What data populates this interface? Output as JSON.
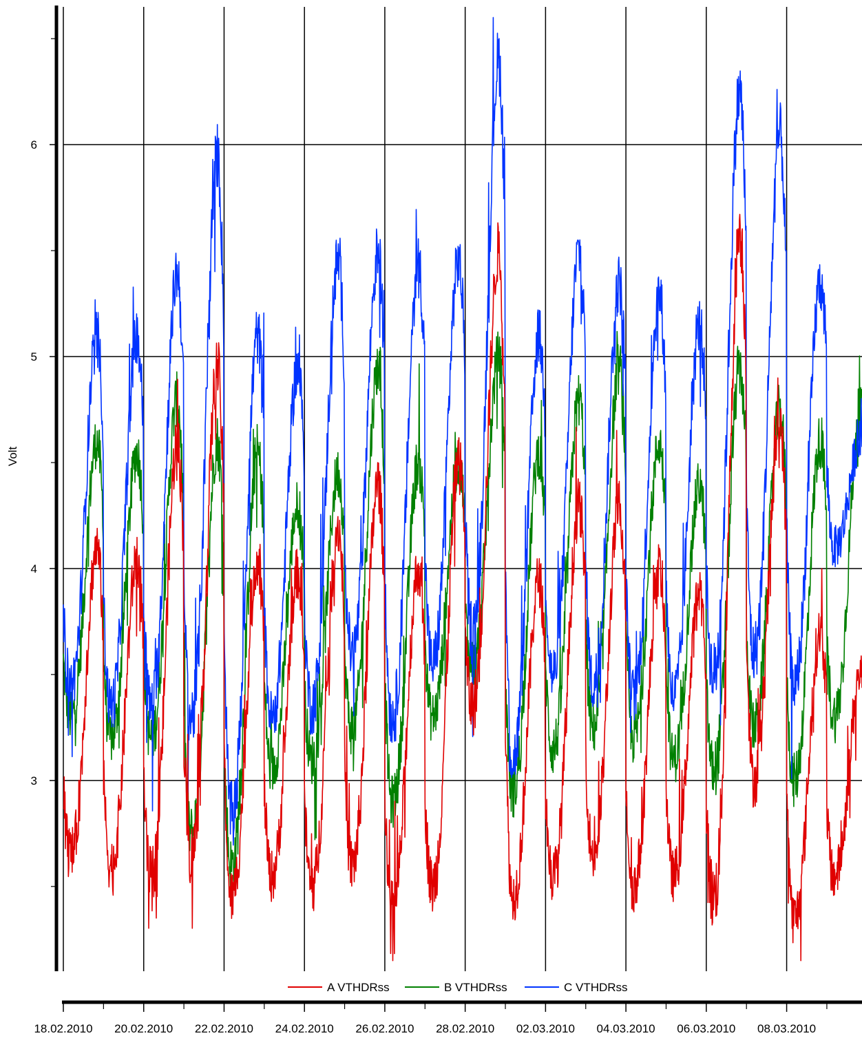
{
  "chart_data": {
    "type": "line",
    "ylabel": "Volt",
    "ylim": [
      2.1,
      6.65
    ],
    "xlim": [
      "2010-02-18",
      "2010-03-09T21:00"
    ],
    "y_ticks": [
      3,
      4,
      5,
      6
    ],
    "x_ticks": [
      "18.02.2010",
      "20.02.2010",
      "22.02.2010",
      "24.02.2010",
      "26.02.2010",
      "28.02.2010",
      "02.03.2010",
      "04.03.2010",
      "06.03.2010",
      "08.03.2010"
    ],
    "grid": true,
    "legend_position": "bottom",
    "series": [
      {
        "name": "A VTHDRss",
        "color": "#e00000",
        "daily_peaks": [
          {
            "date": "2010-02-18",
            "value": 4.1
          },
          {
            "date": "2010-02-19",
            "value": 4.05
          },
          {
            "date": "2010-02-20",
            "value": 4.6
          },
          {
            "date": "2010-02-21",
            "value": 4.95
          },
          {
            "date": "2010-02-22",
            "value": 4.05
          },
          {
            "date": "2010-02-23",
            "value": 3.98
          },
          {
            "date": "2010-02-24",
            "value": 4.2
          },
          {
            "date": "2010-02-25",
            "value": 4.4
          },
          {
            "date": "2010-02-26",
            "value": 4.0
          },
          {
            "date": "2010-02-27",
            "value": 4.5
          },
          {
            "date": "2010-02-28",
            "value": 5.5
          },
          {
            "date": "2010-03-01",
            "value": 3.95
          },
          {
            "date": "2010-03-02",
            "value": 4.3
          },
          {
            "date": "2010-03-03",
            "value": 4.3
          },
          {
            "date": "2010-03-04",
            "value": 4.0
          },
          {
            "date": "2010-03-05",
            "value": 3.9
          },
          {
            "date": "2010-03-06",
            "value": 5.6
          },
          {
            "date": "2010-03-07",
            "value": 4.7
          },
          {
            "date": "2010-03-08",
            "value": 3.7
          },
          {
            "date": "2010-03-09",
            "value": 3.5
          }
        ],
        "daily_lows": [
          {
            "date": "2010-02-18",
            "value": 2.65
          },
          {
            "date": "2010-02-19",
            "value": 2.6
          },
          {
            "date": "2010-02-20",
            "value": 2.55
          },
          {
            "date": "2010-02-21",
            "value": 2.65
          },
          {
            "date": "2010-02-22",
            "value": 2.45
          },
          {
            "date": "2010-02-23",
            "value": 2.55
          },
          {
            "date": "2010-02-24",
            "value": 2.5
          },
          {
            "date": "2010-02-25",
            "value": 2.6
          },
          {
            "date": "2010-02-26",
            "value": 2.4
          },
          {
            "date": "2010-02-27",
            "value": 2.5
          },
          {
            "date": "2010-02-28",
            "value": 3.35
          },
          {
            "date": "2010-03-01",
            "value": 2.45
          },
          {
            "date": "2010-03-02",
            "value": 2.55
          },
          {
            "date": "2010-03-03",
            "value": 2.65
          },
          {
            "date": "2010-03-04",
            "value": 2.5
          },
          {
            "date": "2010-03-05",
            "value": 2.55
          },
          {
            "date": "2010-03-06",
            "value": 2.45
          },
          {
            "date": "2010-03-07",
            "value": 3.0
          },
          {
            "date": "2010-03-08",
            "value": 2.35
          },
          {
            "date": "2010-03-09",
            "value": 2.55
          }
        ]
      },
      {
        "name": "B VTHDRss",
        "color": "#008000",
        "daily_peaks": [
          {
            "date": "2010-02-18",
            "value": 4.6
          },
          {
            "date": "2010-02-19",
            "value": 4.55
          },
          {
            "date": "2010-02-20",
            "value": 4.8
          },
          {
            "date": "2010-02-21",
            "value": 4.6
          },
          {
            "date": "2010-02-22",
            "value": 4.55
          },
          {
            "date": "2010-02-23",
            "value": 4.3
          },
          {
            "date": "2010-02-24",
            "value": 4.45
          },
          {
            "date": "2010-02-25",
            "value": 4.95
          },
          {
            "date": "2010-02-26",
            "value": 4.5
          },
          {
            "date": "2010-02-27",
            "value": 4.5
          },
          {
            "date": "2010-02-28",
            "value": 5.0
          },
          {
            "date": "2010-03-01",
            "value": 4.55
          },
          {
            "date": "2010-03-02",
            "value": 4.8
          },
          {
            "date": "2010-03-03",
            "value": 4.95
          },
          {
            "date": "2010-03-04",
            "value": 4.6
          },
          {
            "date": "2010-03-05",
            "value": 4.4
          },
          {
            "date": "2010-03-06",
            "value": 4.95
          },
          {
            "date": "2010-03-07",
            "value": 4.75
          },
          {
            "date": "2010-03-08",
            "value": 4.6
          },
          {
            "date": "2010-03-09",
            "value": 4.75
          }
        ],
        "daily_lows": [
          {
            "date": "2010-02-18",
            "value": 3.3
          },
          {
            "date": "2010-02-19",
            "value": 3.2
          },
          {
            "date": "2010-02-20",
            "value": 3.2
          },
          {
            "date": "2010-02-21",
            "value": 2.75
          },
          {
            "date": "2010-02-22",
            "value": 2.6
          },
          {
            "date": "2010-02-23",
            "value": 3.05
          },
          {
            "date": "2010-02-24",
            "value": 3.1
          },
          {
            "date": "2010-02-25",
            "value": 3.25
          },
          {
            "date": "2010-02-26",
            "value": 2.9
          },
          {
            "date": "2010-02-27",
            "value": 3.3
          },
          {
            "date": "2010-02-28",
            "value": 3.55
          },
          {
            "date": "2010-03-01",
            "value": 2.95
          },
          {
            "date": "2010-03-02",
            "value": 3.15
          },
          {
            "date": "2010-03-03",
            "value": 3.25
          },
          {
            "date": "2010-03-04",
            "value": 3.2
          },
          {
            "date": "2010-03-05",
            "value": 3.1
          },
          {
            "date": "2010-03-06",
            "value": 3.05
          },
          {
            "date": "2010-03-07",
            "value": 3.25
          },
          {
            "date": "2010-03-08",
            "value": 3.0
          },
          {
            "date": "2010-03-09",
            "value": 3.3
          }
        ]
      },
      {
        "name": "C VTHDRss",
        "color": "#0033ff",
        "daily_peaks": [
          {
            "date": "2010-02-18",
            "value": 5.1
          },
          {
            "date": "2010-02-19",
            "value": 5.1
          },
          {
            "date": "2010-02-20",
            "value": 5.4
          },
          {
            "date": "2010-02-21",
            "value": 5.95
          },
          {
            "date": "2010-02-22",
            "value": 5.1
          },
          {
            "date": "2010-02-23",
            "value": 4.95
          },
          {
            "date": "2010-02-24",
            "value": 5.45
          },
          {
            "date": "2010-02-25",
            "value": 5.5
          },
          {
            "date": "2010-02-26",
            "value": 5.45
          },
          {
            "date": "2010-02-27",
            "value": 5.45
          },
          {
            "date": "2010-02-28",
            "value": 6.4
          },
          {
            "date": "2010-03-01",
            "value": 5.1
          },
          {
            "date": "2010-03-02",
            "value": 5.5
          },
          {
            "date": "2010-03-03",
            "value": 5.35
          },
          {
            "date": "2010-03-04",
            "value": 5.3
          },
          {
            "date": "2010-03-05",
            "value": 5.15
          },
          {
            "date": "2010-03-06",
            "value": 6.25
          },
          {
            "date": "2010-03-07",
            "value": 6.05
          },
          {
            "date": "2010-03-08",
            "value": 5.35
          },
          {
            "date": "2010-03-09",
            "value": 4.6
          }
        ],
        "daily_lows": [
          {
            "date": "2010-02-18",
            "value": 3.45
          },
          {
            "date": "2010-02-19",
            "value": 3.35
          },
          {
            "date": "2010-02-20",
            "value": 3.35
          },
          {
            "date": "2010-02-21",
            "value": 3.3
          },
          {
            "date": "2010-02-22",
            "value": 2.85
          },
          {
            "date": "2010-02-23",
            "value": 3.3
          },
          {
            "date": "2010-02-24",
            "value": 3.35
          },
          {
            "date": "2010-02-25",
            "value": 3.6
          },
          {
            "date": "2010-02-26",
            "value": 3.3
          },
          {
            "date": "2010-02-27",
            "value": 3.55
          },
          {
            "date": "2010-02-28",
            "value": 3.7
          },
          {
            "date": "2010-03-01",
            "value": 3.1
          },
          {
            "date": "2010-03-02",
            "value": 3.5
          },
          {
            "date": "2010-03-03",
            "value": 3.45
          },
          {
            "date": "2010-03-04",
            "value": 3.4
          },
          {
            "date": "2010-03-05",
            "value": 3.4
          },
          {
            "date": "2010-03-06",
            "value": 3.5
          },
          {
            "date": "2010-03-07",
            "value": 3.6
          },
          {
            "date": "2010-03-08",
            "value": 3.45
          },
          {
            "date": "2010-03-09",
            "value": 4.1
          }
        ]
      }
    ]
  }
}
